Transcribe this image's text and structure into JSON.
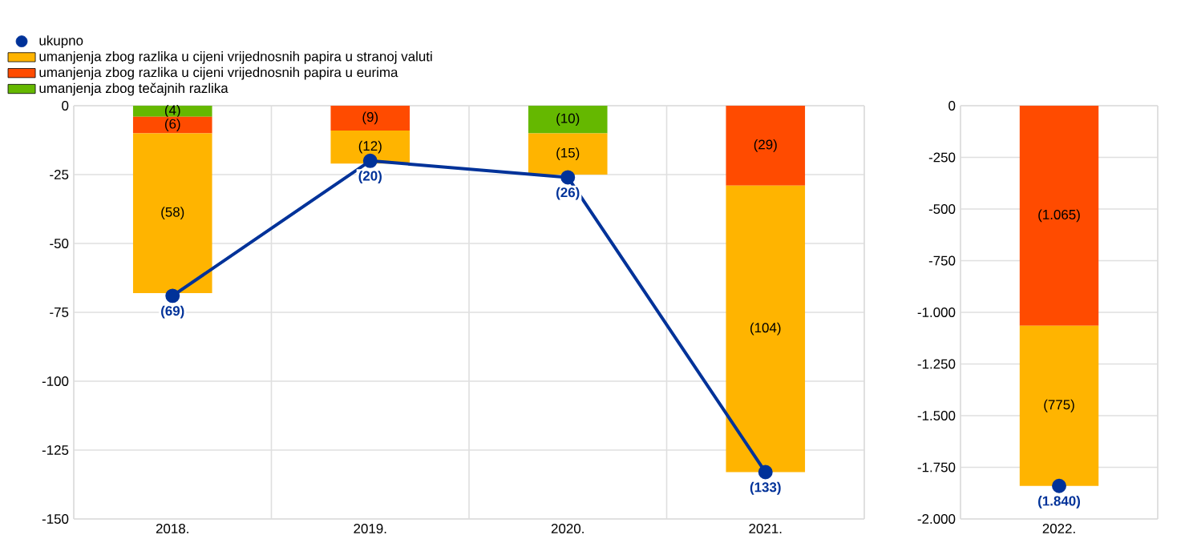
{
  "chart_data": [
    {
      "type": "bar",
      "stacked": true,
      "categories": [
        "2018.",
        "2019.",
        "2020.",
        "2021."
      ],
      "ylim": [
        -150,
        0
      ],
      "yticks": [
        -150,
        -125,
        -100,
        -75,
        -50,
        -25,
        0
      ],
      "grid": true,
      "legend": "top left",
      "series": [
        {
          "name": "umanjenja zbog tečajnih razlika",
          "color": "#65b800",
          "values": [
            -4,
            null,
            -10,
            null
          ],
          "value_labels": [
            "(4)",
            null,
            "(10)",
            null
          ]
        },
        {
          "name": "umanjenja zbog razlika u cijeni vrijednosnih papira u eurima",
          "color": "#ff4b00",
          "values": [
            -6,
            -9,
            null,
            -29
          ],
          "value_labels": [
            "(6)",
            "(9)",
            null,
            "(29)"
          ]
        },
        {
          "name": "umanjenja zbog razlika u cijeni vrijednosnih papira u stranoj valuti",
          "color": "#ffb400",
          "values": [
            -58,
            -12,
            -15,
            -104
          ],
          "value_labels": [
            "(58)",
            "(12)",
            "(15)",
            "(104)"
          ]
        },
        {
          "name": "ukupno",
          "type": "line",
          "marker": "circle",
          "color": "#003299",
          "values": [
            -69,
            -20,
            -26,
            -133
          ],
          "value_labels": [
            "(69)",
            "(20)",
            "(26)",
            "(133)"
          ]
        }
      ]
    },
    {
      "type": "bar",
      "stacked": true,
      "categories": [
        "2022."
      ],
      "ylim": [
        -2000,
        0
      ],
      "yticks": [
        {
          "value": -2000,
          "label": "-2.000"
        },
        {
          "value": -1750,
          "label": "-1.750"
        },
        {
          "value": -1500,
          "label": "-1.500"
        },
        {
          "value": -1250,
          "label": "-1.250"
        },
        {
          "value": -1000,
          "label": "-1.000"
        },
        -750,
        -500,
        -250,
        0
      ],
      "grid": true,
      "series": [
        {
          "color": "#ff4b00",
          "values": [
            -1065
          ],
          "value_labels": [
            "(1.065)"
          ]
        },
        {
          "color": "#ffb400",
          "values": [
            -775
          ],
          "value_labels": [
            "(775)"
          ]
        },
        {
          "type": "line",
          "marker": "circle",
          "color": "#003299",
          "values": [
            -1840
          ],
          "value_labels": [
            "(1.840)"
          ]
        }
      ]
    }
  ]
}
